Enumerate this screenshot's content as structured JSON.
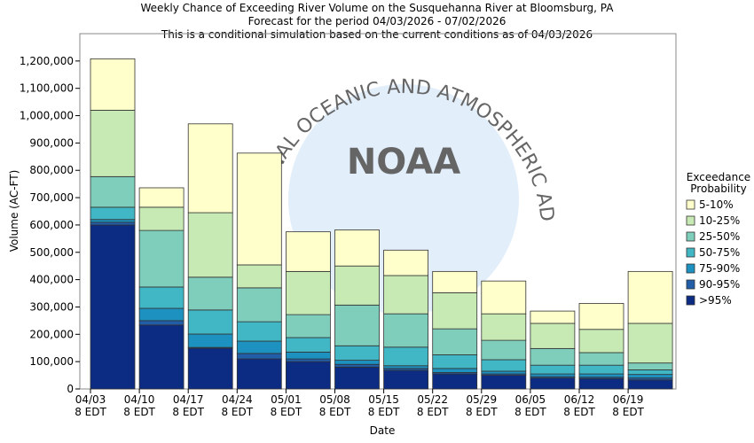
{
  "chart_data": {
    "type": "stacked_bar",
    "title": [
      "Weekly Chance of Exceeding River Volume on the Susquehanna River at Bloomsburg, PA",
      "Forecast for the period 04/03/2026 - 07/02/2026",
      "This is a conditional simulation based on the current conditions as of 04/03/2026"
    ],
    "xlabel": "Date",
    "ylabel": "Volume (AC-FT)",
    "legend_title": [
      "Exceedance",
      "Probability"
    ],
    "watermark": {
      "logo": "NOAA",
      "ring": "NATIONAL OCEANIC AND ATMOSPHERIC ADMINISTRATION"
    },
    "categories": [
      [
        "04/03",
        "8 EDT"
      ],
      [
        "04/10",
        "8 EDT"
      ],
      [
        "04/17",
        "8 EDT"
      ],
      [
        "04/24",
        "8 EDT"
      ],
      [
        "05/01",
        "8 EDT"
      ],
      [
        "05/08",
        "8 EDT"
      ],
      [
        "05/15",
        "8 EDT"
      ],
      [
        "05/22",
        "8 EDT"
      ],
      [
        "05/29",
        "8 EDT"
      ],
      [
        "06/05",
        "8 EDT"
      ],
      [
        "06/12",
        "8 EDT"
      ],
      [
        "06/19",
        "8 EDT"
      ]
    ],
    "series": [
      {
        "name": ">95%",
        "color": "#0c2c84",
        "values": [
          600000,
          234000,
          149000,
          110000,
          100000,
          80000,
          68000,
          55000,
          50000,
          40000,
          38000,
          33000
        ]
      },
      {
        "name": "90-95%",
        "color": "#225ea8",
        "values": [
          10000,
          16000,
          3000,
          20000,
          10000,
          10000,
          7000,
          5000,
          5000,
          5000,
          5000,
          7000
        ]
      },
      {
        "name": "75-90%",
        "color": "#1d91c0",
        "values": [
          10000,
          45000,
          49000,
          45000,
          25000,
          15000,
          10000,
          15000,
          10000,
          10000,
          12000,
          13000
        ]
      },
      {
        "name": "50-75%",
        "color": "#41b6c4",
        "values": [
          45000,
          78000,
          88000,
          71000,
          53000,
          53000,
          68000,
          50000,
          42000,
          32000,
          32000,
          17000
        ]
      },
      {
        "name": "25-50%",
        "color": "#7fcdbb",
        "values": [
          112000,
          207000,
          120000,
          124000,
          84000,
          149000,
          122000,
          95000,
          71000,
          61000,
          46000,
          25000
        ]
      },
      {
        "name": "10-25%",
        "color": "#c7e9b4",
        "values": [
          243000,
          85000,
          236000,
          84000,
          158000,
          143000,
          140000,
          132000,
          97000,
          92000,
          85000,
          145000
        ]
      },
      {
        "name": "5-10%",
        "color": "#ffffcc",
        "values": [
          188000,
          71000,
          325000,
          409000,
          145000,
          132000,
          93000,
          78000,
          120000,
          45000,
          95000,
          190000
        ]
      }
    ],
    "ylim": [
      0,
      1300000
    ],
    "yticks": [
      0,
      {
        "value": 100000,
        "label": "100,000"
      },
      {
        "value": 200000,
        "label": "200,000"
      },
      {
        "value": 300000,
        "label": "300,000"
      },
      {
        "value": 400000,
        "label": "400,000"
      },
      {
        "value": 500000,
        "label": "500,000"
      },
      {
        "value": 600000,
        "label": "600,000"
      },
      {
        "value": 700000,
        "label": "700,000"
      },
      {
        "value": 800000,
        "label": "800,000"
      },
      {
        "value": 900000,
        "label": "900,000"
      },
      {
        "value": 1000000,
        "label": "1,000,000"
      },
      {
        "value": 1100000,
        "label": "1,100,000"
      },
      {
        "value": 1200000,
        "label": "1,200,000"
      }
    ],
    "grid": false
  }
}
